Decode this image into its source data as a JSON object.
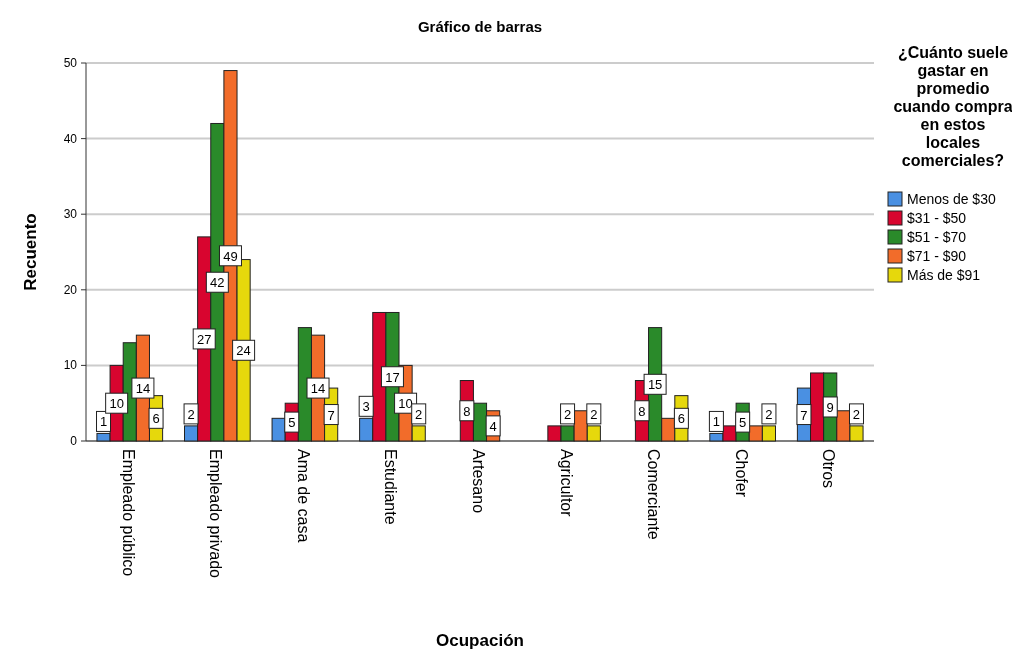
{
  "chart_data": {
    "type": "bar",
    "title": "Gráfico de barras",
    "xlabel": "Ocupación",
    "ylabel": "Recuento",
    "legend_title": "¿Cuánto suele gastar en promedio cuando compra en estos locales comerciales?",
    "categories": [
      "Empleado público",
      "Empleado privado",
      "Ama de casa",
      "Estudiante",
      "Artesano",
      "Agricultor",
      "Comerciante",
      "Chofer",
      "Otros"
    ],
    "series": [
      {
        "name": "Menos de $30",
        "color": "#4a90e2",
        "values": [
          1,
          2,
          3,
          3,
          null,
          null,
          null,
          1,
          7
        ],
        "value_labels": [
          "1",
          "2",
          null,
          "3",
          null,
          null,
          null,
          "1",
          "7"
        ]
      },
      {
        "name": "$31 - $50",
        "color": "#d8052f",
        "values": [
          10,
          27,
          5,
          17,
          8,
          2,
          8,
          2,
          9
        ],
        "value_labels": [
          "10",
          "27",
          "5",
          null,
          "8",
          null,
          "8",
          null,
          null
        ]
      },
      {
        "name": "$51 - $70",
        "color": "#2a8a2a",
        "values": [
          13,
          42,
          15,
          17,
          5,
          2,
          15,
          5,
          9
        ],
        "value_labels": [
          null,
          "42",
          null,
          "17",
          null,
          "2",
          "15",
          "5",
          "9"
        ]
      },
      {
        "name": "$71 - $90",
        "color": "#f26c2a",
        "values": [
          14,
          49,
          14,
          10,
          4,
          4,
          3,
          2,
          4
        ],
        "value_labels": [
          "14",
          "49",
          "14",
          "10",
          "4",
          null,
          null,
          null,
          null
        ]
      },
      {
        "name": "Más de $91",
        "color": "#e6d80c",
        "values": [
          6,
          24,
          7,
          2,
          null,
          2,
          6,
          2,
          2
        ],
        "value_labels": [
          "6",
          "24",
          "7",
          "2",
          null,
          "2",
          "6",
          "2",
          "2"
        ]
      }
    ],
    "ylim": [
      0,
      50
    ],
    "yticks": [
      0,
      10,
      20,
      30,
      40,
      50
    ],
    "grid": "y",
    "legend": "right"
  }
}
